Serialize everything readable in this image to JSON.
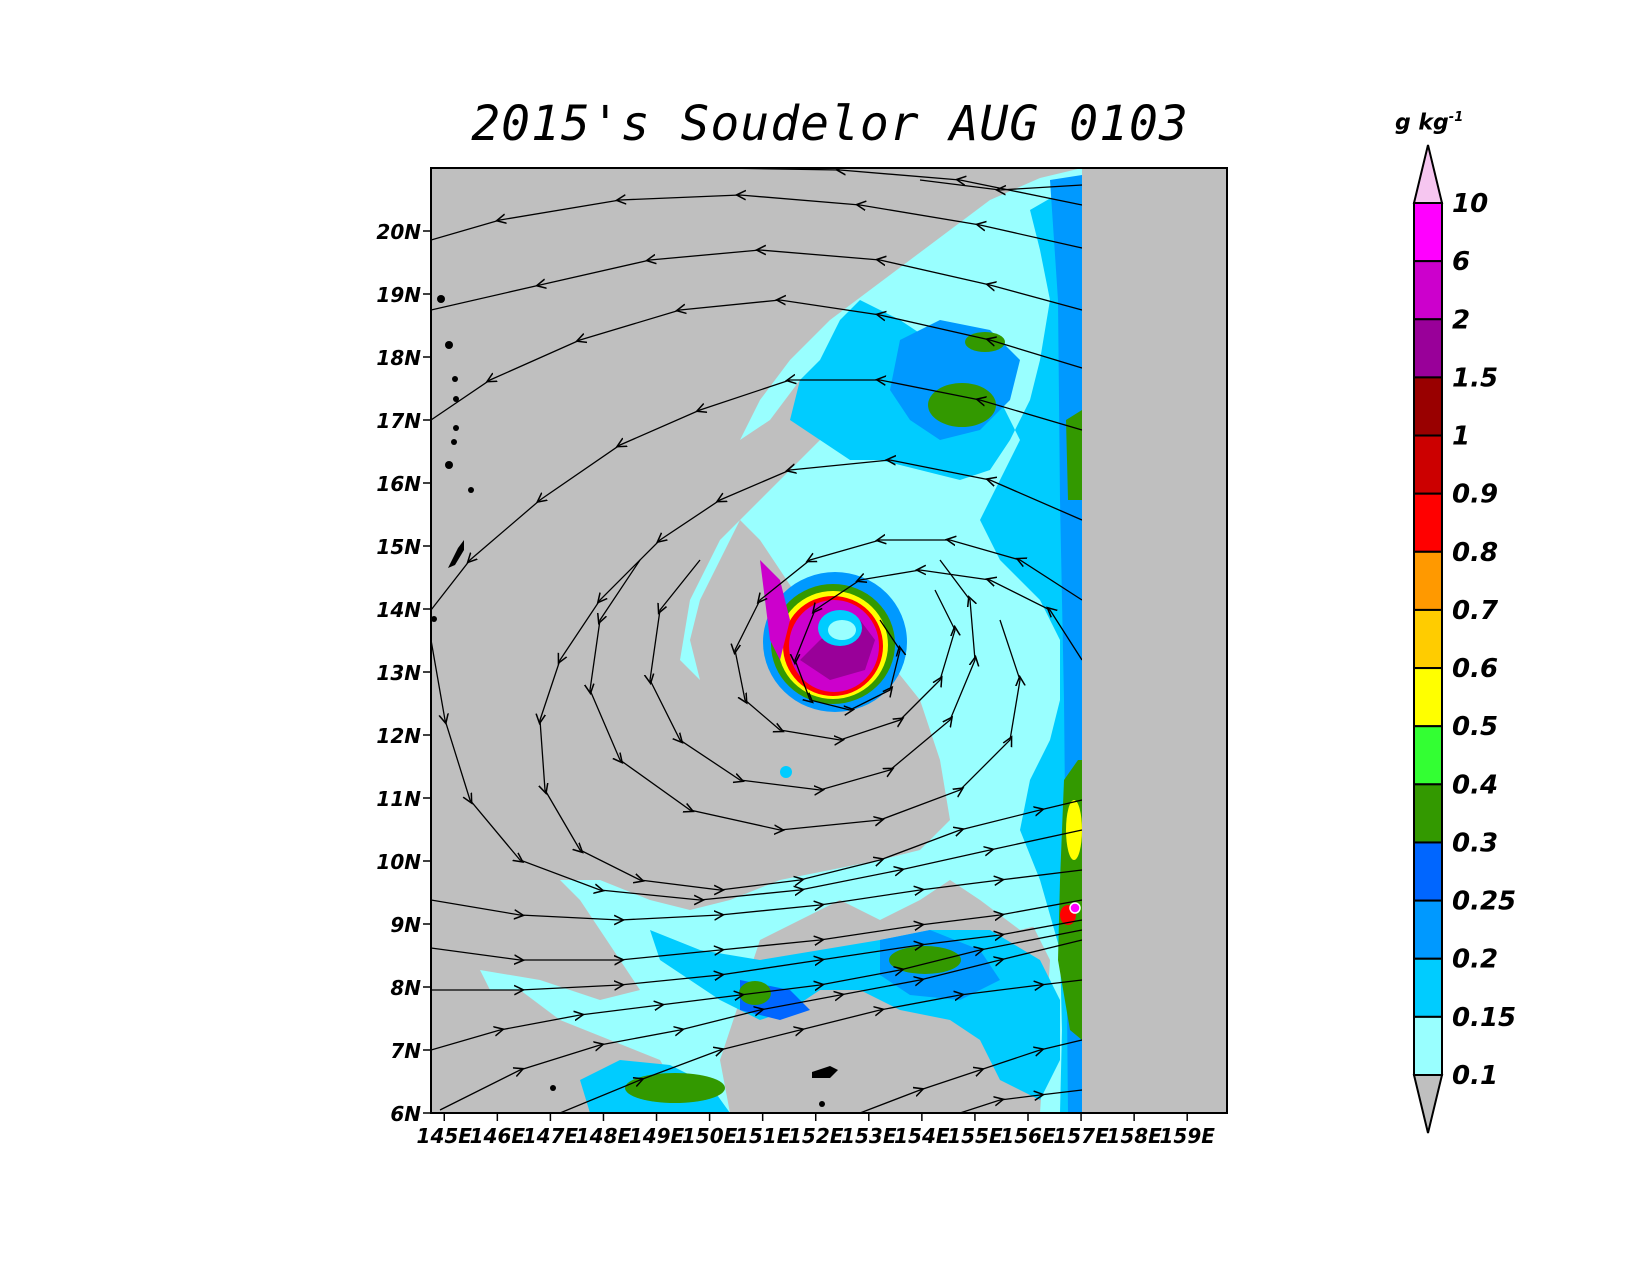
{
  "title": "2015's Soudelor AUG 0103",
  "colorbar": {
    "units_main": "g  kg",
    "units_exp": "-1",
    "levels": [
      "10",
      "6",
      "2",
      "1.5",
      "1",
      "0.9",
      "0.8",
      "0.7",
      "0.6",
      "0.5",
      "0.4",
      "0.3",
      "0.25",
      "0.2",
      "0.15",
      "0.1"
    ],
    "colors": [
      "#f6c6f0",
      "#ff00ff",
      "#cc00cc",
      "#990099",
      "#990000",
      "#cc0000",
      "#ff0000",
      "#ff9900",
      "#ffcc00",
      "#ffff00",
      "#33ff33",
      "#339900",
      "#0066ff",
      "#0099ff",
      "#00ccff",
      "#99ffff",
      "#bfbfbf"
    ]
  },
  "axes": {
    "lat_labels": [
      "20N",
      "19N",
      "18N",
      "17N",
      "16N",
      "15N",
      "14N",
      "13N",
      "12N",
      "11N",
      "10N",
      "9N",
      "8N",
      "7N",
      "6N"
    ],
    "lon_labels": [
      "145E",
      "146E",
      "147E",
      "148E",
      "149E",
      "150E",
      "151E",
      "152E",
      "153E",
      "154E",
      "155E",
      "156E",
      "157E",
      "158E",
      "159E"
    ],
    "lon_range": [
      144.75,
      159.75
    ],
    "lat_range": [
      6.0,
      21.0
    ]
  },
  "colors": {
    "background": "#bfbfbf",
    "frame": "#000000",
    "land": "#000000"
  }
}
